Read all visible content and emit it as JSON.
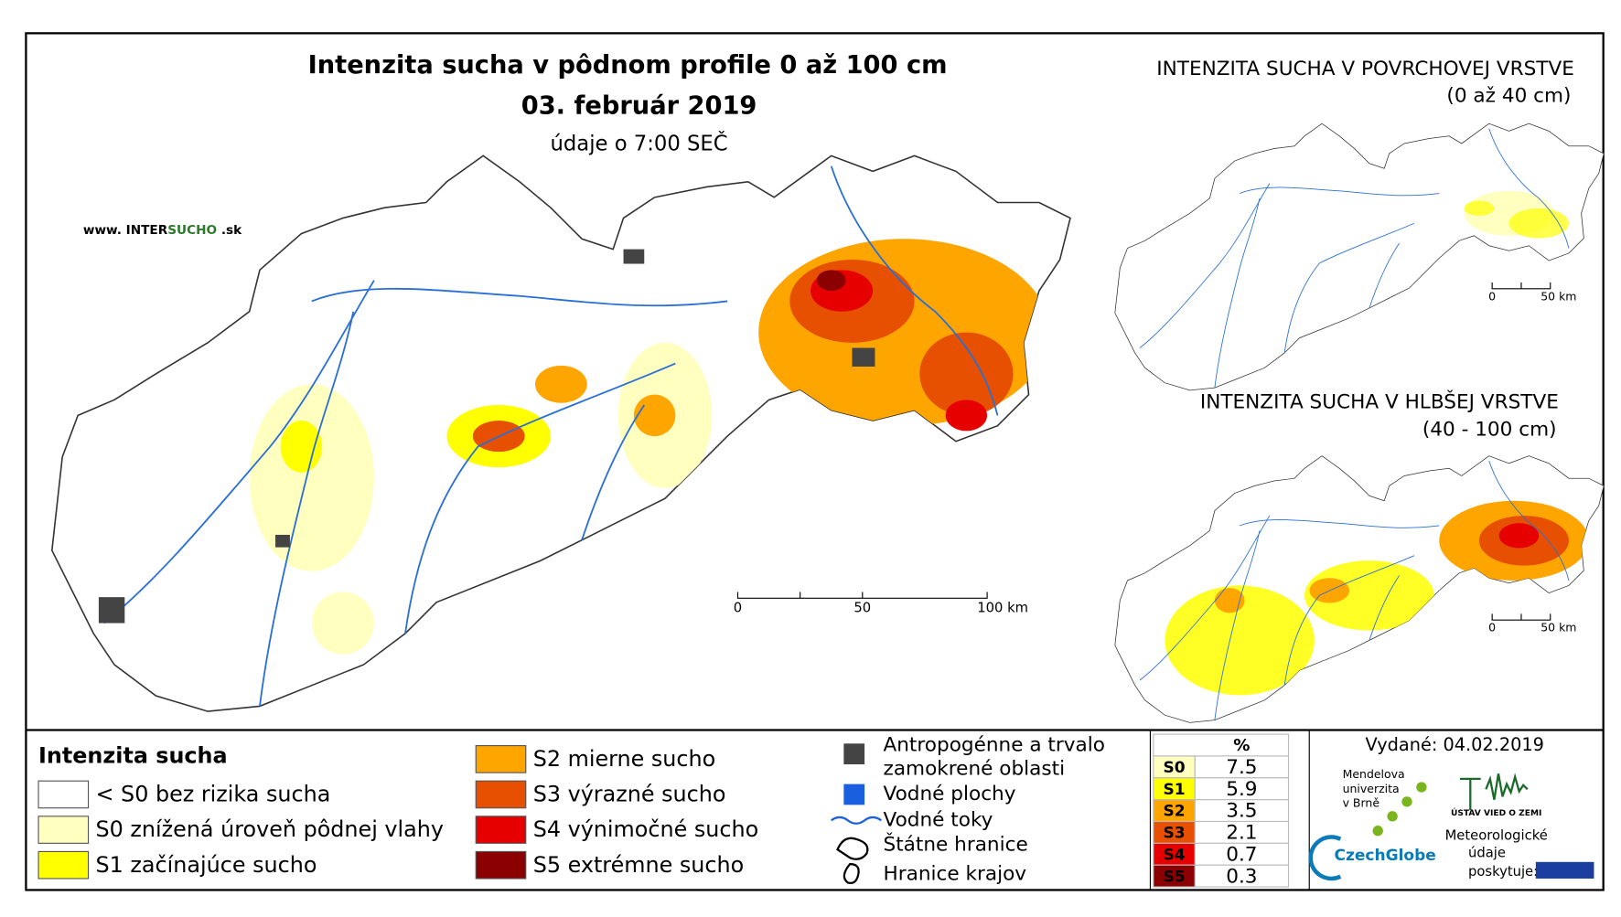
{
  "main_map": {
    "title": "Intenzita sucha v pôdnom profile 0 až 100 cm",
    "date": "03. február 2019",
    "note": "údaje o 7:00 SEČ",
    "website": [
      "www. INTER",
      "SUCHO",
      " .sk"
    ],
    "scale": [
      "0",
      "50",
      "100 km"
    ]
  },
  "inset_surface": {
    "title": "INTENZITA SUCHA V POVRCHOVEJ VRSTVE",
    "subtitle": "(0 až 40 cm)",
    "scale": [
      "0",
      "50 km"
    ]
  },
  "inset_deep": {
    "title": "INTENZITA SUCHA V HLBŠEJ VRSTVE",
    "subtitle": "(40 - 100 cm)",
    "scale": [
      "0",
      "50 km"
    ]
  },
  "legend": {
    "title": "Intenzita sucha",
    "classes": [
      {
        "label": "< S0 bez rizika sucha",
        "color": "#ffffff"
      },
      {
        "label": "S0 znížená úroveň pôdnej vlahy",
        "color": "#ffffc0"
      },
      {
        "label": "S1 začínajúce sucho",
        "color": "#ffff00"
      },
      {
        "label": "S2 mierne sucho",
        "color": "#ffa500"
      },
      {
        "label": "S3 výrazné sucho",
        "color": "#e65000"
      },
      {
        "label": "S4 výnimočné sucho",
        "color": "#e60000"
      },
      {
        "label": "S5 extrémne sucho",
        "color": "#8b0000"
      }
    ],
    "other": [
      "Antropogénne a trvalo",
      "zamokrené oblasti",
      "Vodné plochy",
      "Vodné toky",
      "Štátne hranice",
      "Hranice krajov"
    ]
  },
  "stats": {
    "header": "%",
    "rows": [
      {
        "code": "S0",
        "percent": 7.5,
        "color": "#ffffc0"
      },
      {
        "code": "S1",
        "percent": 5.9,
        "color": "#ffff00"
      },
      {
        "code": "S2",
        "percent": 3.5,
        "color": "#ffa500"
      },
      {
        "code": "S3",
        "percent": 2.1,
        "color": "#e65000"
      },
      {
        "code": "S4",
        "percent": 0.7,
        "color": "#e60000"
      },
      {
        "code": "S5",
        "percent": 0.3,
        "color": "#8b0000"
      }
    ]
  },
  "issued": "Vydané: 04.02.2019",
  "logos": {
    "mendel": [
      "Mendelova",
      "univerzita",
      "v Brně"
    ],
    "czechglobe": "CzechGlobe",
    "ustav": "ÚSTAV VIED O ZEMI",
    "provided": [
      "Meteorologické",
      "údaje",
      "poskytuje:"
    ]
  }
}
